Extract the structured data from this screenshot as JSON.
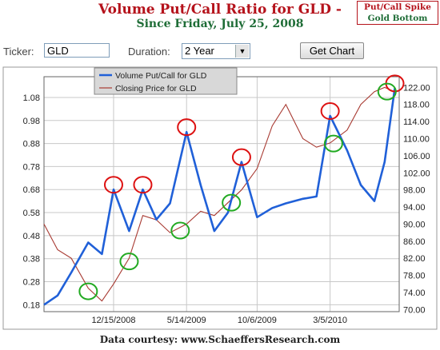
{
  "title": "Volume Put/Call Ratio for GLD -",
  "subtitle": "Since Friday, July 25, 2008",
  "badge": {
    "line1": "Put/Call Spike",
    "line2": "Gold Bottom"
  },
  "controls": {
    "ticker_label": "Ticker:",
    "ticker_value": "GLD",
    "duration_label": "Duration:",
    "duration_value": "2 Year",
    "button_label": "Get Chart"
  },
  "credit": "Data courtesy: www.SchaeffersResearch.com",
  "colors": {
    "putcall": "#2060d8",
    "price": "#a83a32",
    "spike": "#dd1111",
    "bottom": "#22aa22"
  },
  "chart_data": {
    "type": "line",
    "x": [
      "2008-07-25",
      "2008-08-22",
      "2008-09-19",
      "2008-10-24",
      "2008-11-21",
      "2008-12-15",
      "2009-01-16",
      "2009-02-13",
      "2009-03-13",
      "2009-04-10",
      "2009-05-14",
      "2009-06-12",
      "2009-07-10",
      "2009-08-07",
      "2009-09-04",
      "2009-10-06",
      "2009-11-06",
      "2009-12-04",
      "2010-01-08",
      "2010-02-05",
      "2010-03-05",
      "2010-04-09",
      "2010-05-07",
      "2010-06-04",
      "2010-06-25",
      "2010-07-16"
    ],
    "series": [
      {
        "name": "Volume Put/Call for GLD",
        "axis": "left",
        "values": [
          0.18,
          0.22,
          0.32,
          0.45,
          0.4,
          0.68,
          0.5,
          0.68,
          0.55,
          0.62,
          0.93,
          0.7,
          0.5,
          0.58,
          0.8,
          0.56,
          0.6,
          0.62,
          0.64,
          0.65,
          1.0,
          0.85,
          0.7,
          0.63,
          0.8,
          1.12
        ]
      },
      {
        "name": "Closing Price for GLD",
        "axis": "right",
        "values": [
          90,
          84,
          82,
          75,
          72,
          76,
          82,
          92,
          91,
          88,
          90,
          93,
          92,
          95,
          98,
          103,
          113,
          118,
          110,
          108,
          109,
          112,
          118,
          121,
          122,
          121
        ]
      }
    ],
    "left_axis": {
      "ticks": [
        "0.18",
        "0.28",
        "0.38",
        "0.48",
        "0.58",
        "0.68",
        "0.78",
        "0.88",
        "0.98",
        "1.08"
      ],
      "range": [
        0.15,
        1.17
      ]
    },
    "right_axis": {
      "ticks": [
        "70.00",
        "74.00",
        "78.00",
        "82.00",
        "86.00",
        "90.00",
        "94.00",
        "98.00",
        "102.00",
        "106.00",
        "110.00",
        "114.00",
        "118.00",
        "122.00"
      ],
      "range": [
        69.5,
        124.5
      ]
    },
    "x_labels": [
      "12/15/2008",
      "5/14/2009",
      "10/6/2009",
      "3/5/2010"
    ],
    "x_label_dates": [
      "2008-12-15",
      "2009-05-14",
      "2009-10-06",
      "2010-03-05"
    ],
    "x_range": [
      "2008-07-25",
      "2010-07-25"
    ],
    "grid": true,
    "legend": "top-left",
    "spike_markers": [
      "2008-12-15",
      "2009-02-13",
      "2009-05-14",
      "2009-09-04",
      "2010-03-05",
      "2010-07-16"
    ],
    "bottom_markers": [
      "2008-10-24",
      "2009-01-16",
      "2009-05-01",
      "2009-08-14",
      "2010-03-12",
      "2010-06-30"
    ]
  }
}
